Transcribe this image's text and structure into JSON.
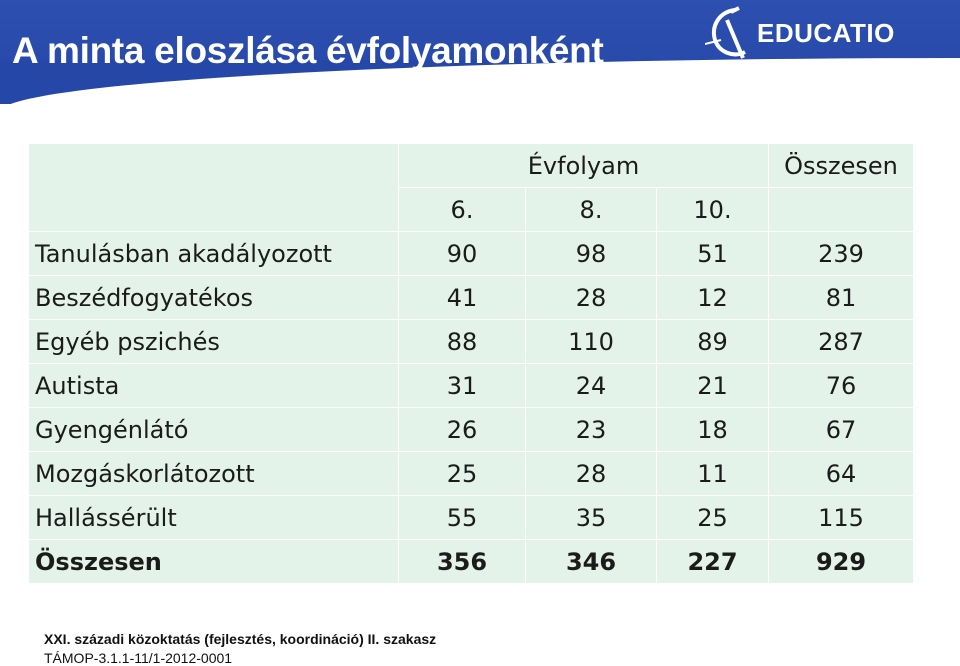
{
  "slide": {
    "title": "A minta eloszlása évfolyamonként",
    "logo_text": "EDUCATIO",
    "header_color": "#2447a8",
    "table_bg": "#e4f3ea"
  },
  "table": {
    "group_header": "Évfolyam",
    "total_header": "Összesen",
    "grade_headers": [
      "6.",
      "8.",
      "10."
    ],
    "rows": [
      {
        "label": "Tanulásban akadályozott",
        "g6": "90",
        "g8": "98",
        "g10": "51",
        "total": "239"
      },
      {
        "label": "Beszédfogyatékos",
        "g6": "41",
        "g8": "28",
        "g10": "12",
        "total": "81"
      },
      {
        "label": "Egyéb pszichés",
        "g6": "88",
        "g8": "110",
        "g10": "89",
        "total": "287"
      },
      {
        "label": "Autista",
        "g6": "31",
        "g8": "24",
        "g10": "21",
        "total": "76"
      },
      {
        "label": "Gyengénlátó",
        "g6": "26",
        "g8": "23",
        "g10": "18",
        "total": "67"
      },
      {
        "label": "Mozgáskorlátozott",
        "g6": "25",
        "g8": "28",
        "g10": "11",
        "total": "64"
      },
      {
        "label": "Hallássérült",
        "g6": "55",
        "g8": "35",
        "g10": "25",
        "total": "115"
      },
      {
        "label": "Összesen",
        "g6": "356",
        "g8": "346",
        "g10": "227",
        "total": "929"
      }
    ]
  },
  "footer": {
    "line1": "XXI. századi közoktatás (fejlesztés, koordináció) II. szakasz",
    "line2": "TÁMOP-3.1.1-11/1-2012-0001"
  }
}
